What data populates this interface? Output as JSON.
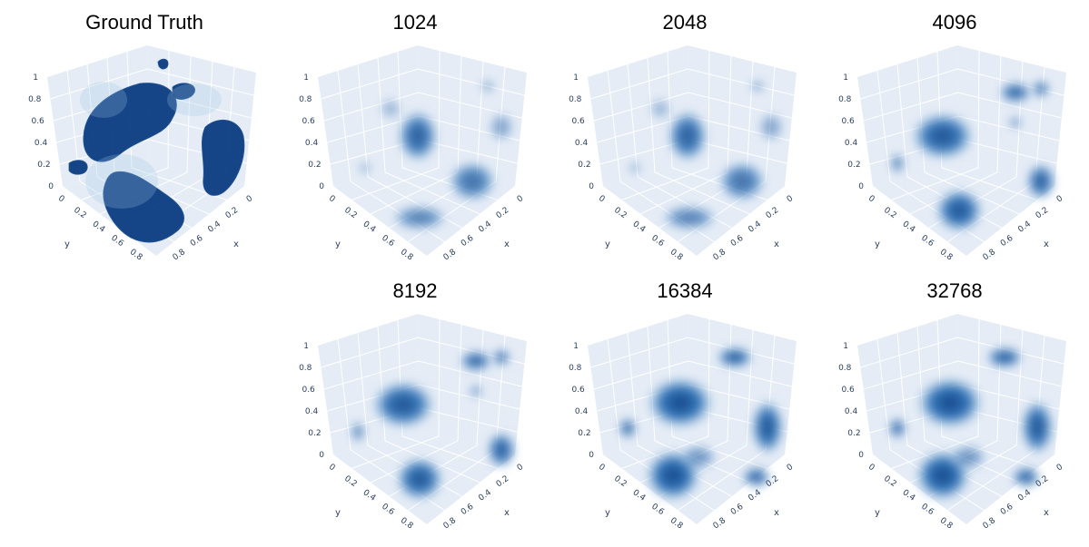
{
  "figure": {
    "panels": [
      {
        "id": "gt",
        "title": "Ground Truth",
        "style": "sharp"
      },
      {
        "id": "p1024",
        "title": "1024",
        "style": "soft-sparse"
      },
      {
        "id": "p2048",
        "title": "2048",
        "style": "soft-sparse"
      },
      {
        "id": "p4096",
        "title": "4096",
        "style": "soft-medium"
      },
      {
        "id": "p8192",
        "title": "8192",
        "style": "soft-medium"
      },
      {
        "id": "p16384",
        "title": "16384",
        "style": "soft-dense"
      },
      {
        "id": "p32768",
        "title": "32768",
        "style": "soft-dense"
      }
    ],
    "axes": {
      "z_ticks": [
        "1",
        "0.8",
        "0.6",
        "0.4",
        "0.2",
        "0"
      ],
      "y_ticks": [
        "0",
        "0.2",
        "0.4",
        "0.6",
        "0.8"
      ],
      "x_ticks": [
        "0",
        "0.2",
        "0.4",
        "0.6",
        "0.8"
      ],
      "x_label": "x",
      "y_label": "y"
    },
    "colors": {
      "scene_bg": "#e5ecf6",
      "grid": "#ffffff",
      "volume_dark": "#0b3d82",
      "volume_mid": "#2b72b8",
      "volume_light": "#9cc3e0",
      "tick_text": "#2a3f5f"
    }
  }
}
